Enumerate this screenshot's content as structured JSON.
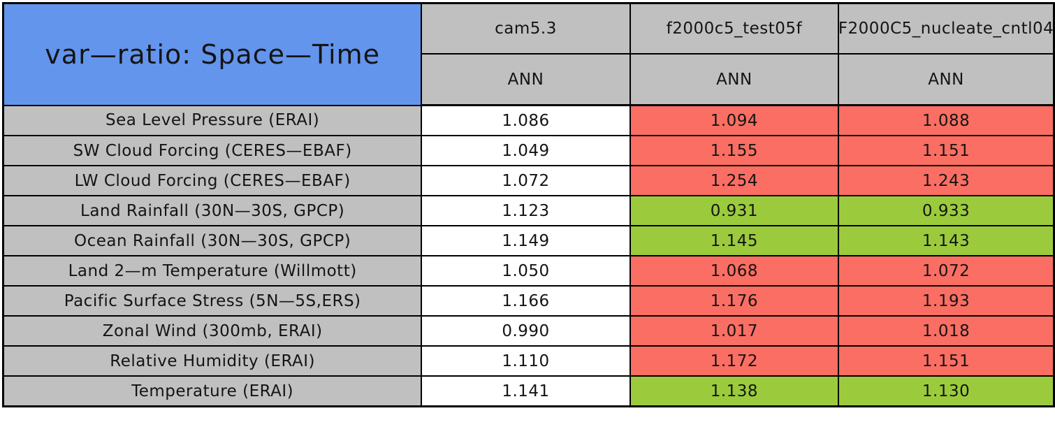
{
  "table": {
    "title": "var—ratio: Space—Time",
    "columns": [
      {
        "model": "cam5.3",
        "season": "ANN"
      },
      {
        "model": "f2000c5_test05f",
        "season": "ANN"
      },
      {
        "model": "F2000C5_nucleate_cntl04",
        "season": "ANN"
      }
    ],
    "rows": [
      {
        "label": "Sea Level Pressure (ERAI)",
        "cells": [
          {
            "value": "1.086",
            "status": "neutral"
          },
          {
            "value": "1.094",
            "status": "worse"
          },
          {
            "value": "1.088",
            "status": "worse"
          }
        ]
      },
      {
        "label": "SW Cloud Forcing (CERES—EBAF)",
        "cells": [
          {
            "value": "1.049",
            "status": "neutral"
          },
          {
            "value": "1.155",
            "status": "worse"
          },
          {
            "value": "1.151",
            "status": "worse"
          }
        ]
      },
      {
        "label": "LW Cloud Forcing (CERES—EBAF)",
        "cells": [
          {
            "value": "1.072",
            "status": "neutral"
          },
          {
            "value": "1.254",
            "status": "worse"
          },
          {
            "value": "1.243",
            "status": "worse"
          }
        ]
      },
      {
        "label": "Land Rainfall (30N—30S, GPCP)",
        "cells": [
          {
            "value": "1.123",
            "status": "neutral"
          },
          {
            "value": "0.931",
            "status": "better"
          },
          {
            "value": "0.933",
            "status": "better"
          }
        ]
      },
      {
        "label": "Ocean Rainfall (30N—30S, GPCP)",
        "cells": [
          {
            "value": "1.149",
            "status": "neutral"
          },
          {
            "value": "1.145",
            "status": "better"
          },
          {
            "value": "1.143",
            "status": "better"
          }
        ]
      },
      {
        "label": "Land 2—m Temperature (Willmott)",
        "cells": [
          {
            "value": "1.050",
            "status": "neutral"
          },
          {
            "value": "1.068",
            "status": "worse"
          },
          {
            "value": "1.072",
            "status": "worse"
          }
        ]
      },
      {
        "label": "Pacific Surface Stress (5N—5S,ERS)",
        "cells": [
          {
            "value": "1.166",
            "status": "neutral"
          },
          {
            "value": "1.176",
            "status": "worse"
          },
          {
            "value": "1.193",
            "status": "worse"
          }
        ]
      },
      {
        "label": "Zonal Wind (300mb, ERAI)",
        "cells": [
          {
            "value": "0.990",
            "status": "neutral"
          },
          {
            "value": "1.017",
            "status": "worse"
          },
          {
            "value": "1.018",
            "status": "worse"
          }
        ]
      },
      {
        "label": "Relative Humidity (ERAI)",
        "cells": [
          {
            "value": "1.110",
            "status": "neutral"
          },
          {
            "value": "1.172",
            "status": "worse"
          },
          {
            "value": "1.151",
            "status": "worse"
          }
        ]
      },
      {
        "label": "Temperature (ERAI)",
        "cells": [
          {
            "value": "1.141",
            "status": "neutral"
          },
          {
            "value": "1.138",
            "status": "better"
          },
          {
            "value": "1.130",
            "status": "better"
          }
        ]
      }
    ],
    "colors": {
      "title_background": "#6495ED",
      "header_background": "#C0C0C0",
      "label_background": "#C0C0C0",
      "neutral_cell": "#FFFFFF",
      "worse_cell": "#FA6E63",
      "better_cell": "#9BCB3C",
      "grid_line": "#000000"
    }
  },
  "chart_data": {
    "type": "table",
    "title": "var—ratio: Space—Time",
    "columns": [
      "cam5.3",
      "f2000c5_test05f",
      "F2000C5_nucleate_cntl04"
    ],
    "column_subheaders": [
      "ANN",
      "ANN",
      "ANN"
    ],
    "row_labels": [
      "Sea Level Pressure (ERAI)",
      "SW Cloud Forcing (CERES—EBAF)",
      "LW Cloud Forcing (CERES—EBAF)",
      "Land Rainfall (30N—30S, GPCP)",
      "Ocean Rainfall (30N—30S, GPCP)",
      "Land 2—m Temperature (Willmott)",
      "Pacific Surface Stress (5N—5S,ERS)",
      "Zonal Wind (300mb, ERAI)",
      "Relative Humidity (ERAI)",
      "Temperature (ERAI)"
    ],
    "values": [
      [
        1.086,
        1.094,
        1.088
      ],
      [
        1.049,
        1.155,
        1.151
      ],
      [
        1.072,
        1.254,
        1.243
      ],
      [
        1.123,
        0.931,
        0.933
      ],
      [
        1.149,
        1.145,
        1.143
      ],
      [
        1.05,
        1.068,
        1.072
      ],
      [
        1.166,
        1.176,
        1.193
      ],
      [
        0.99,
        1.017,
        1.018
      ],
      [
        1.11,
        1.172,
        1.151
      ],
      [
        1.141,
        1.138,
        1.13
      ]
    ],
    "cell_status": [
      [
        "neutral",
        "worse",
        "worse"
      ],
      [
        "neutral",
        "worse",
        "worse"
      ],
      [
        "neutral",
        "worse",
        "worse"
      ],
      [
        "neutral",
        "better",
        "better"
      ],
      [
        "neutral",
        "better",
        "better"
      ],
      [
        "neutral",
        "worse",
        "worse"
      ],
      [
        "neutral",
        "worse",
        "worse"
      ],
      [
        "neutral",
        "worse",
        "worse"
      ],
      [
        "neutral",
        "worse",
        "worse"
      ],
      [
        "neutral",
        "better",
        "better"
      ]
    ],
    "status_colors": {
      "neutral": "#FFFFFF",
      "worse": "#FA6E63",
      "better": "#9BCB3C"
    }
  }
}
